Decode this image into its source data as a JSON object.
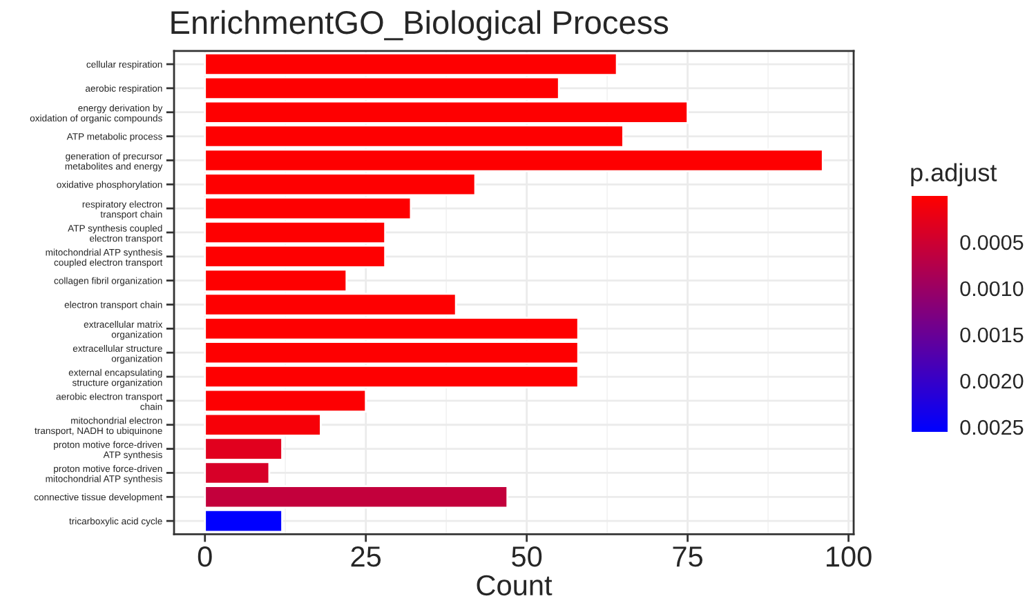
{
  "chart_data": {
    "type": "bar",
    "orientation": "horizontal",
    "title": "EnrichmentGO_Biological Process",
    "xlabel": "Count",
    "clabel": "p.adjust",
    "categories": [
      "cellular respiration",
      "aerobic respiration",
      "energy derivation by\noxidation of organic compounds",
      "ATP metabolic process",
      "generation of precursor\nmetabolites and energy",
      "oxidative phosphorylation",
      "respiratory electron\ntransport chain",
      "ATP synthesis coupled\nelectron transport",
      "mitochondrial ATP synthesis\ncoupled electron transport",
      "collagen fibril organization",
      "electron transport chain",
      "extracellular matrix\norganization",
      "extracellular structure\norganization",
      "external encapsulating\nstructure organization",
      "aerobic electron transport\nchain",
      "mitochondrial electron\ntransport, NADH to ubiquinone",
      "proton motive force-driven\nATP synthesis",
      "proton motive force-driven\nmitochondrial ATP synthesis",
      "connective tissue development",
      "tricarboxylic acid cycle"
    ],
    "values": [
      64,
      55,
      75,
      65,
      96,
      42,
      32,
      28,
      28,
      22,
      39,
      58,
      58,
      58,
      25,
      18,
      12,
      10,
      47,
      12
    ],
    "cvalues": [
      1e-05,
      1e-05,
      1e-05,
      1e-05,
      1e-05,
      1e-05,
      1e-05,
      1e-05,
      1e-05,
      1e-05,
      1e-05,
      1e-05,
      1e-05,
      1e-05,
      2e-05,
      8e-05,
      0.0003,
      0.0004,
      0.0006,
      0.00255
    ],
    "clim": [
      0.0,
      0.00255
    ],
    "cticks": [
      {
        "value": 0.0005,
        "label": "0.0005"
      },
      {
        "value": 0.001,
        "label": "0.0010"
      },
      {
        "value": 0.0015,
        "label": "0.0015"
      },
      {
        "value": 0.002,
        "label": "0.0020"
      },
      {
        "value": 0.0025,
        "label": "0.0025"
      }
    ],
    "xlim": [
      -4.8,
      100.8
    ],
    "xticks": [
      0,
      25,
      50,
      75,
      100
    ],
    "grid": true
  }
}
